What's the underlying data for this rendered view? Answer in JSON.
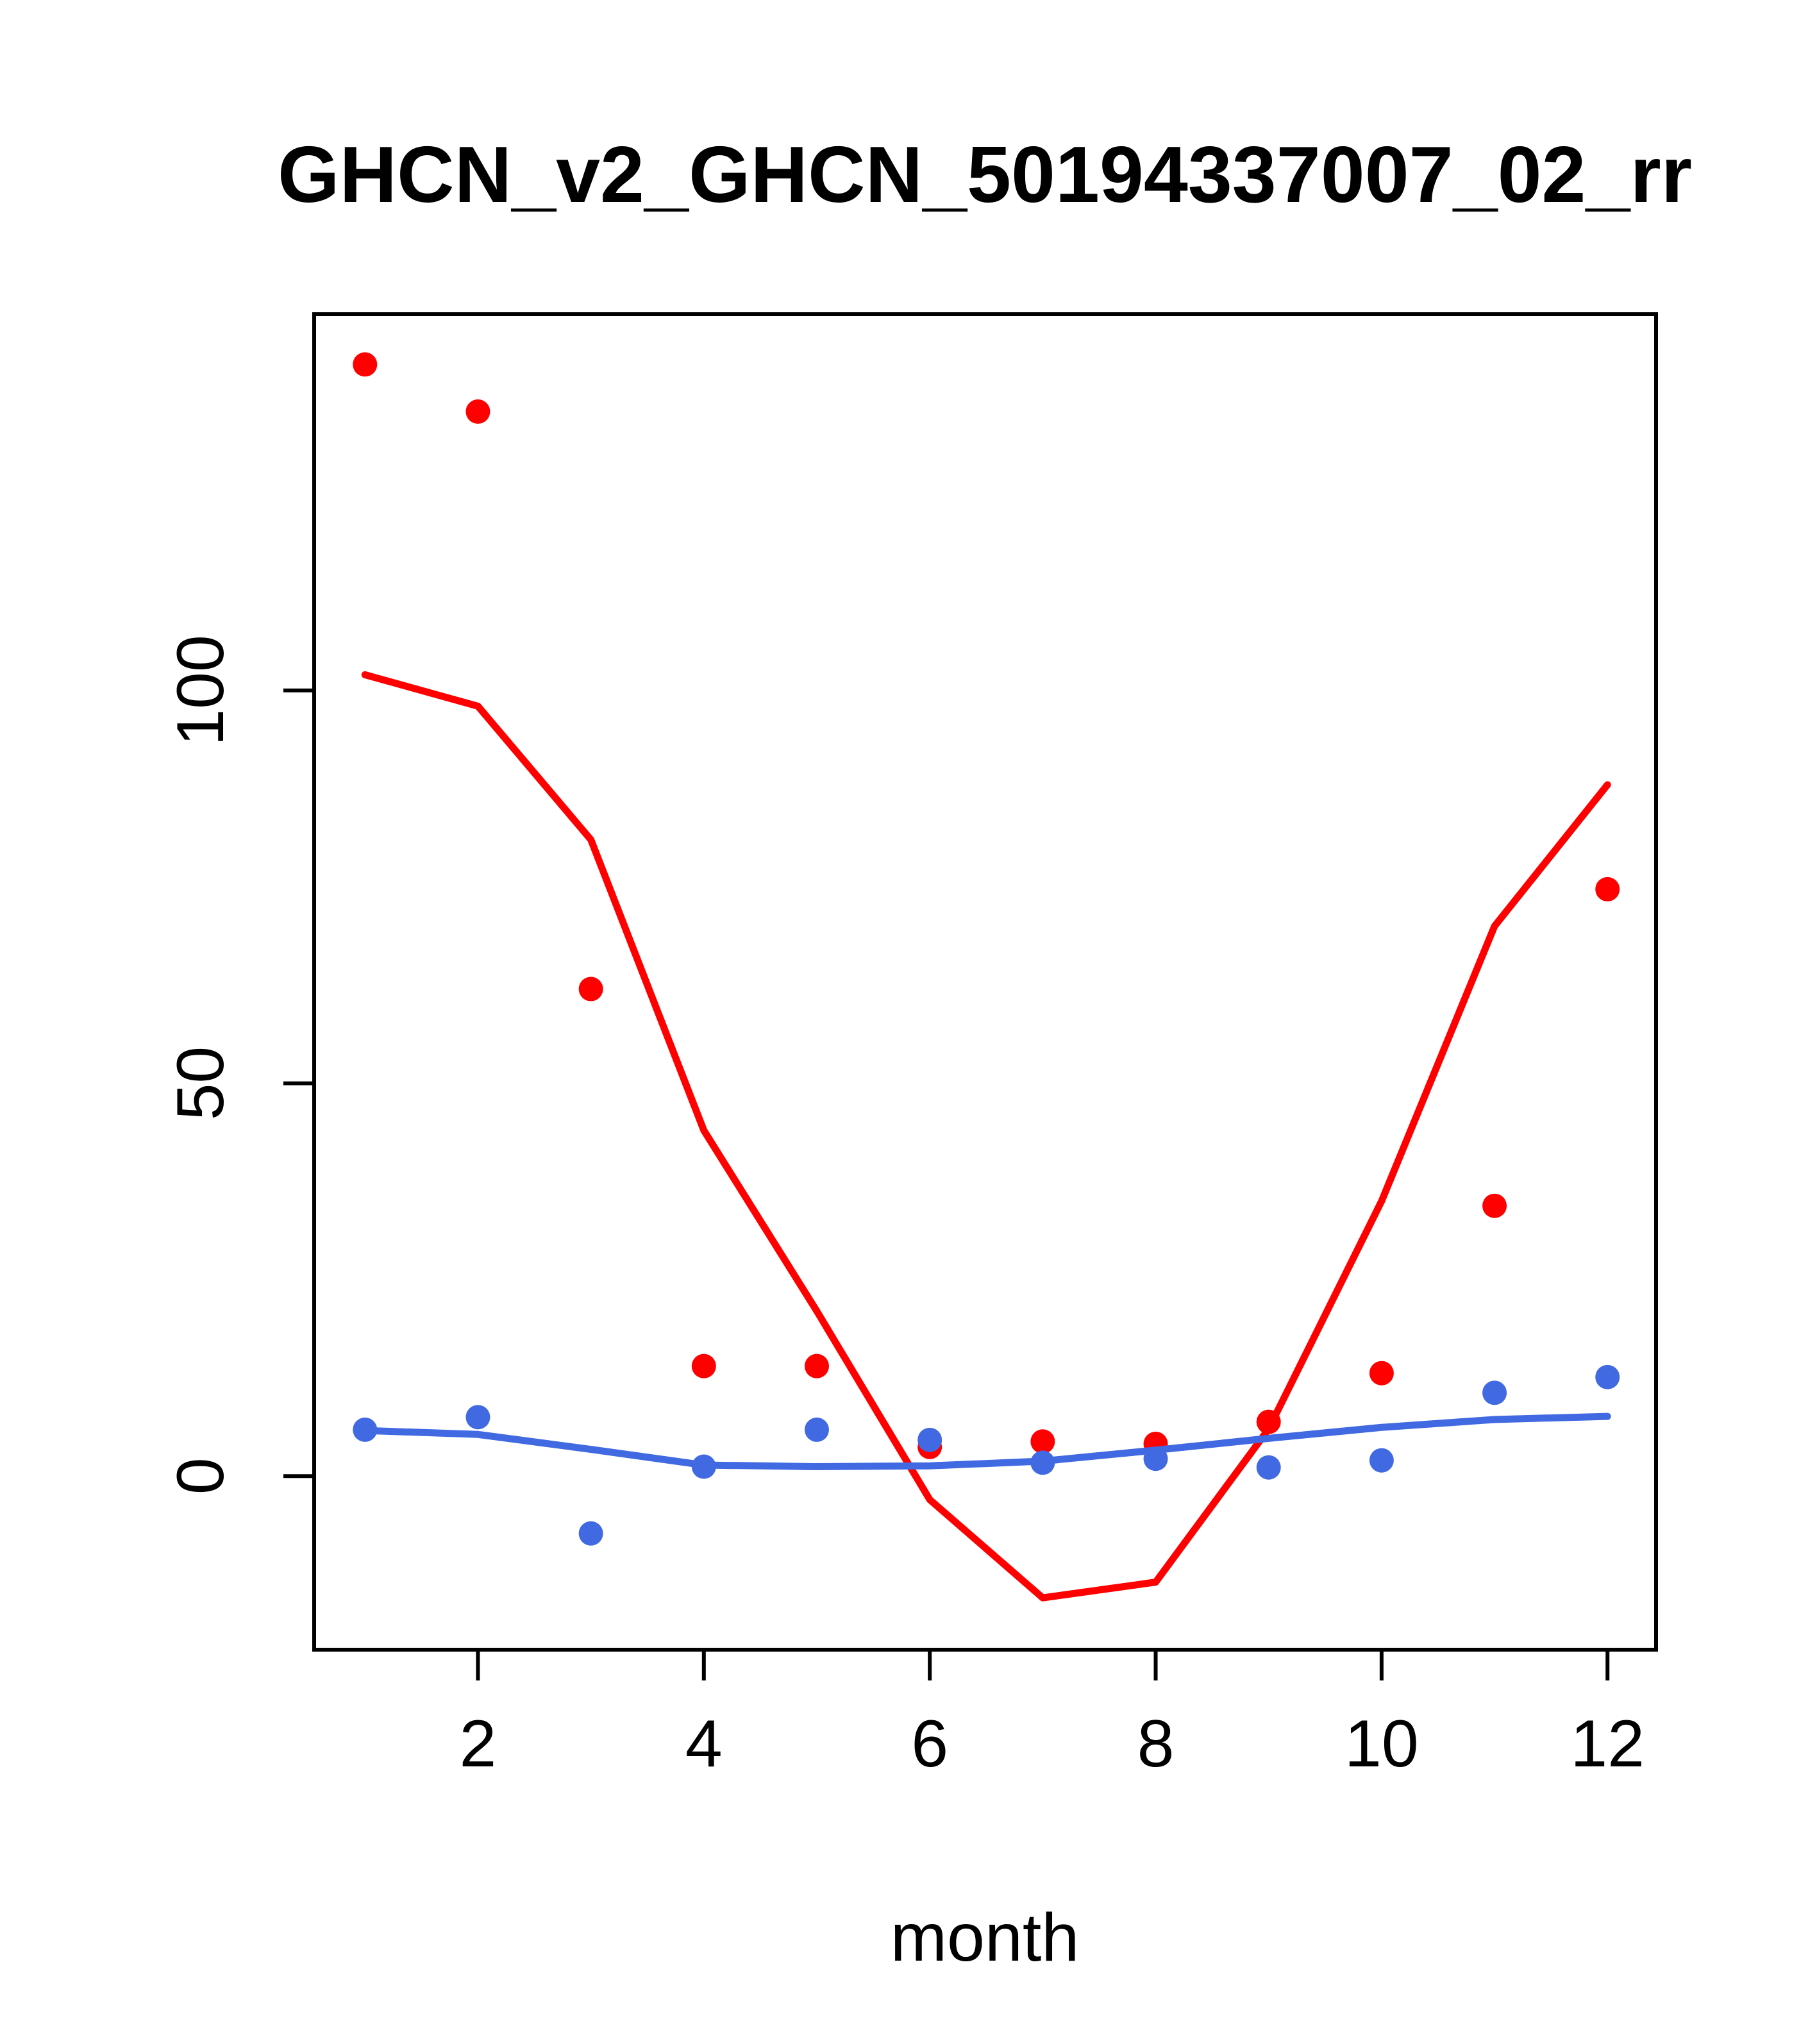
{
  "chart_data": {
    "type": "scatter",
    "title": "GHCN_v2_GHCN_50194337007_02_rr",
    "xlabel": "month",
    "ylabel": "",
    "x": [
      1,
      2,
      3,
      4,
      5,
      6,
      7,
      8,
      9,
      10,
      11,
      12
    ],
    "xlim": [
      0.55,
      12.43
    ],
    "ylim": [
      -22.1,
      147.9
    ],
    "x_ticks": [
      2,
      4,
      6,
      8,
      10,
      12
    ],
    "x_tick_labels": [
      "2",
      "4",
      "6",
      "8",
      "10",
      "12"
    ],
    "y_ticks": [
      0,
      50,
      100
    ],
    "y_tick_labels": [
      "0",
      "50",
      "100"
    ],
    "grid": false,
    "legend": null,
    "colors": {
      "red_series": "#ff0000",
      "blue_series": "#4169e1",
      "axis": "#000000",
      "background": "#ffffff"
    },
    "series": [
      {
        "name": "red-points",
        "kind": "scatter",
        "color": "#ff0000",
        "values": [
          141.5,
          135.5,
          62,
          14,
          14,
          3.7,
          4.4,
          4.1,
          6.9,
          13.1,
          34.4,
          74.7
        ]
      },
      {
        "name": "red-loess-line",
        "kind": "line",
        "color": "#ff0000",
        "values": [
          102,
          98,
          81,
          44,
          21,
          -3,
          -15.5,
          -13.5,
          6,
          35,
          70,
          88
        ]
      },
      {
        "name": "blue-points",
        "kind": "scatter",
        "color": "#4169e1",
        "values": [
          5.9,
          7.5,
          -7.3,
          1.2,
          5.9,
          4.6,
          1.7,
          2.2,
          1.1,
          2.0,
          10.6,
          12.6
        ]
      },
      {
        "name": "blue-loess-line",
        "kind": "line",
        "color": "#4169e1",
        "values": [
          5.8,
          5.3,
          3.4,
          1.4,
          1.2,
          1.3,
          1.9,
          3.3,
          4.8,
          6.2,
          7.2,
          7.6
        ]
      }
    ]
  }
}
